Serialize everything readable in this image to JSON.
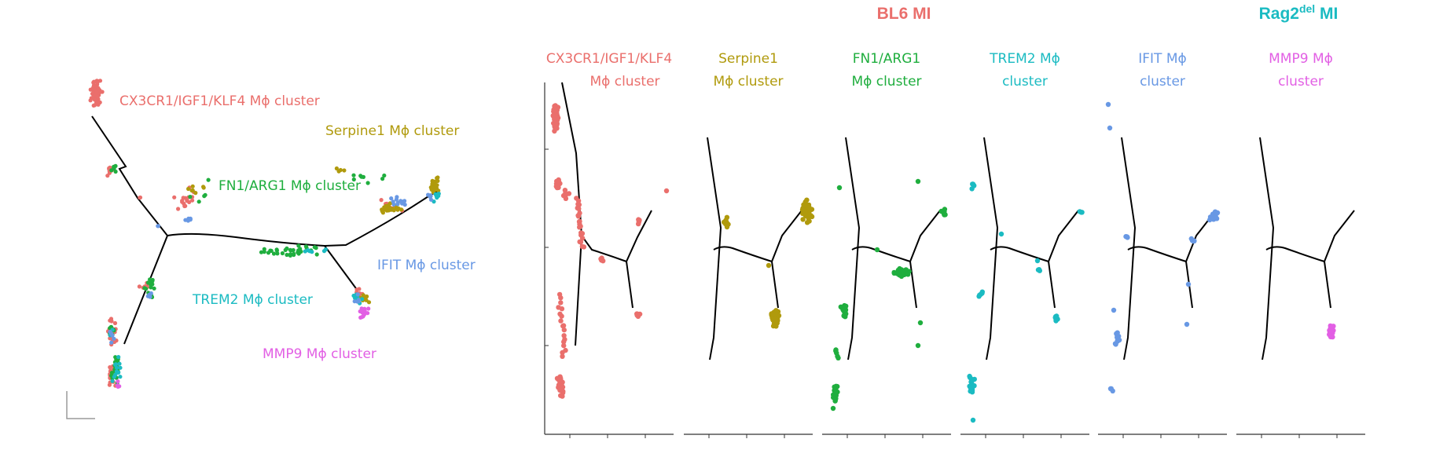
{
  "colors": {
    "cx3cr1": "#ea6f6c",
    "serpine1": "#b09a0c",
    "fn1": "#1fae3e",
    "trem2": "#1bbbc2",
    "ifit": "#6898e4",
    "mmp9": "#e25fe4",
    "tree": "#000000",
    "axis": "#333333"
  },
  "conditions": {
    "bl6": "BL6 MI",
    "rag2_base": "Rag2",
    "rag2_sup": "del",
    "rag2_suffix": " MI"
  },
  "chart_data": [
    {
      "type": "scatter",
      "panel": "overview",
      "trajectory": "branched pseudotime tree",
      "cluster_labels": [
        {
          "key": "cx3cr1",
          "text": "CX3CR1/IGF1/KLF4 Mϕ cluster"
        },
        {
          "key": "serpine1",
          "text": "Serpine1 Mϕ cluster"
        },
        {
          "key": "fn1",
          "text": "FN1/ARG1 Mϕ cluster"
        },
        {
          "key": "ifit",
          "text": "IFIT Mϕ cluster"
        },
        {
          "key": "trem2",
          "text": "TREM2 Mϕ cluster"
        },
        {
          "key": "mmp9",
          "text": "MMP9 Mϕ cluster"
        }
      ]
    },
    {
      "type": "scatter",
      "panel": "per-cluster",
      "group": "BL6 MI",
      "panels": [
        {
          "key": "cx3cr1",
          "title_lines": [
            "CX3CR1/IGF1/KLF4",
            "Mϕ cluster"
          ]
        },
        {
          "key": "serpine1",
          "title_lines": [
            "Serpine1",
            "Mϕ cluster"
          ]
        },
        {
          "key": "fn1",
          "title_lines": [
            "FN1/ARG1",
            "Mϕ cluster"
          ]
        },
        {
          "key": "trem2",
          "title_lines": [
            "TREM2 Mϕ",
            "cluster"
          ]
        },
        {
          "key": "ifit",
          "title_lines": [
            "IFIT Mϕ",
            "cluster"
          ]
        },
        {
          "key": "mmp9",
          "title_lines": [
            "MMP9 Mϕ",
            "cluster"
          ]
        }
      ]
    }
  ]
}
